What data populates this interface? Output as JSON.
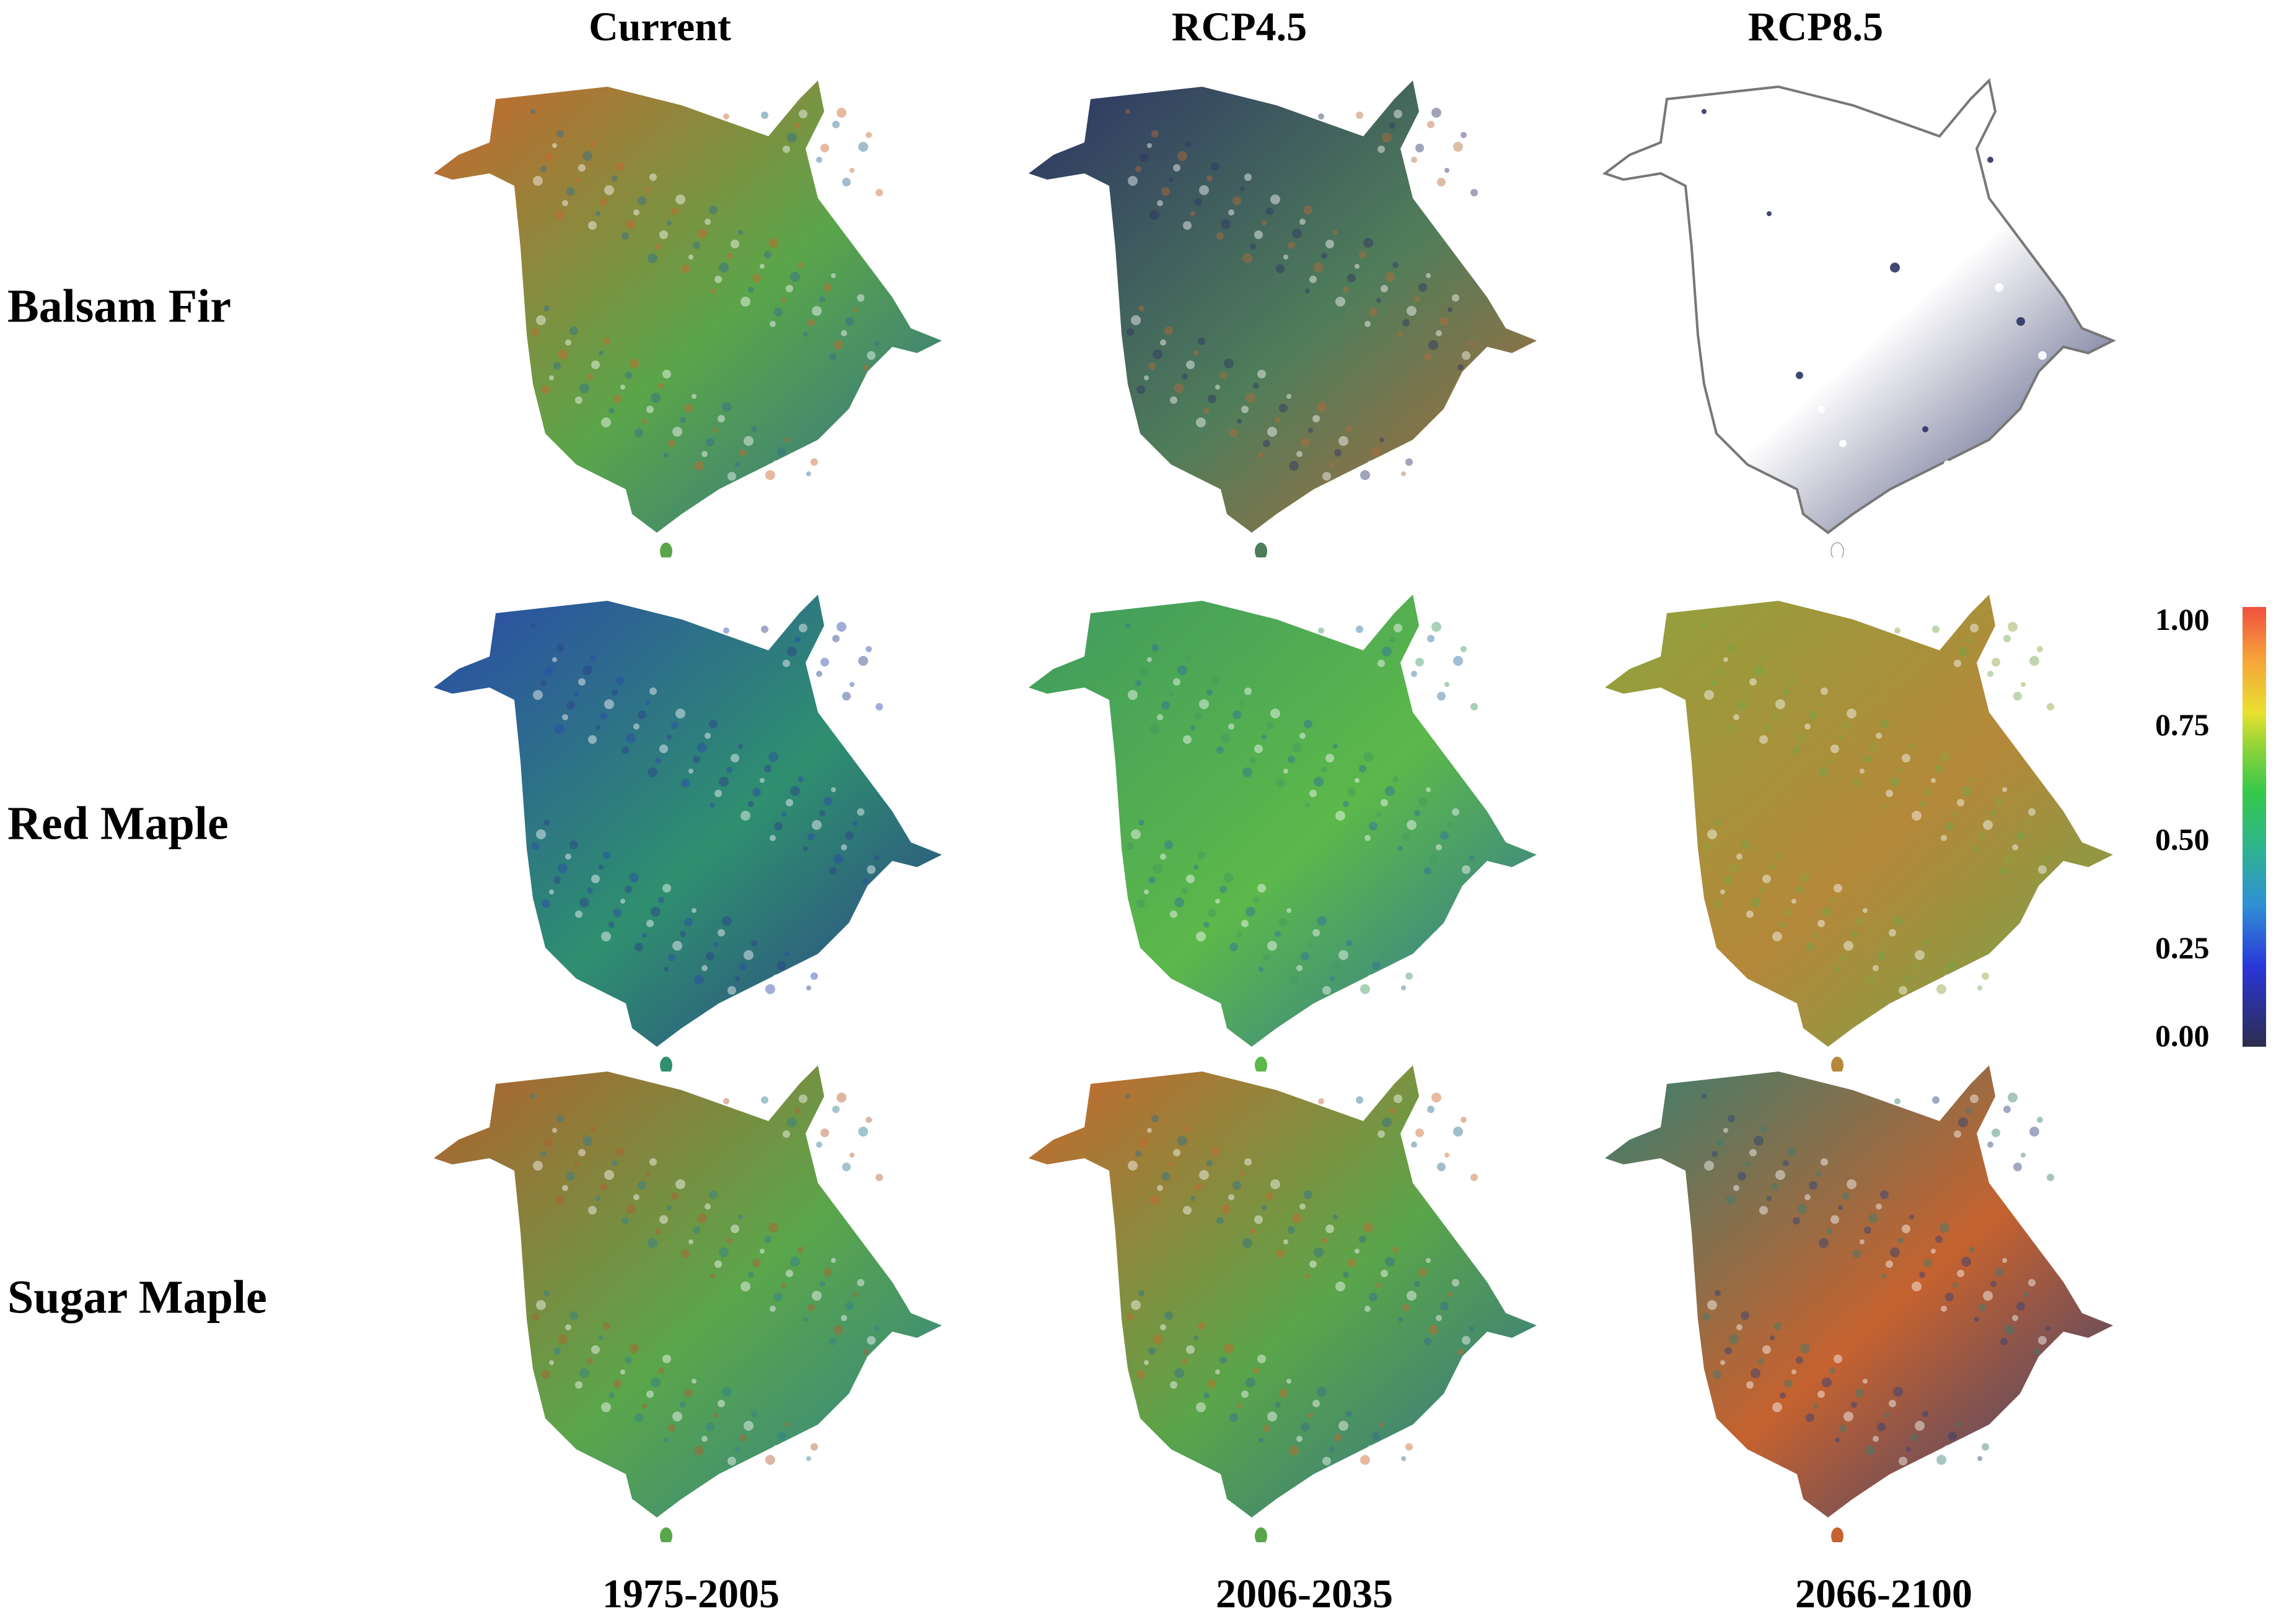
{
  "columns": [
    {
      "header": "Current",
      "period": "1975-2005"
    },
    {
      "header": "RCP4.5",
      "period": "2006-2035"
    },
    {
      "header": "RCP8.5",
      "period": "2066-2100"
    }
  ],
  "rows": [
    {
      "label": "Balsam Fir"
    },
    {
      "label": "Red Maple"
    },
    {
      "label": "Sugar Maple"
    }
  ],
  "panels": [
    [
      "suit-orange",
      "suit-dark",
      "suit-none"
    ],
    [
      "suit-blue",
      "suit-green",
      "suit-yellowgreen"
    ],
    [
      "suit-mixed",
      "suit-orange",
      "suit-bluegreen"
    ]
  ],
  "palettes": {
    "suit-orange": {
      "a": "#c9662d",
      "b": "#5aa54a",
      "c": "#2f6f8f"
    },
    "suit-dark": {
      "a": "#2c3364",
      "b": "#4f7d5a",
      "c": "#b86a3a"
    },
    "suit-none": {
      "a": "#ffffff",
      "b": "#ffffff",
      "c": "#2c3364"
    },
    "suit-blue": {
      "a": "#2b4aa8",
      "b": "#2f8f6f",
      "c": "#2d3d8a"
    },
    "suit-green": {
      "a": "#3f9a5f",
      "b": "#5cb84a",
      "c": "#2f6fa0"
    },
    "suit-yellowgreen": {
      "a": "#8fa23c",
      "b": "#b5883a",
      "c": "#6fa64a"
    },
    "suit-mixed": {
      "a": "#b1602f",
      "b": "#5aa64b",
      "c": "#2f7f8f"
    },
    "suit-bluegreen": {
      "a": "#3a7f6f",
      "b": "#c5622f",
      "c": "#2c3f7a"
    }
  },
  "legend": {
    "ticks": [
      "1.00",
      "0.75",
      "0.50",
      "0.25",
      "0.00"
    ],
    "colors": [
      "#2d2d4d",
      "#2a35d8",
      "#2fb58a",
      "#35c94a",
      "#e9e12f",
      "#f0503f"
    ]
  }
}
